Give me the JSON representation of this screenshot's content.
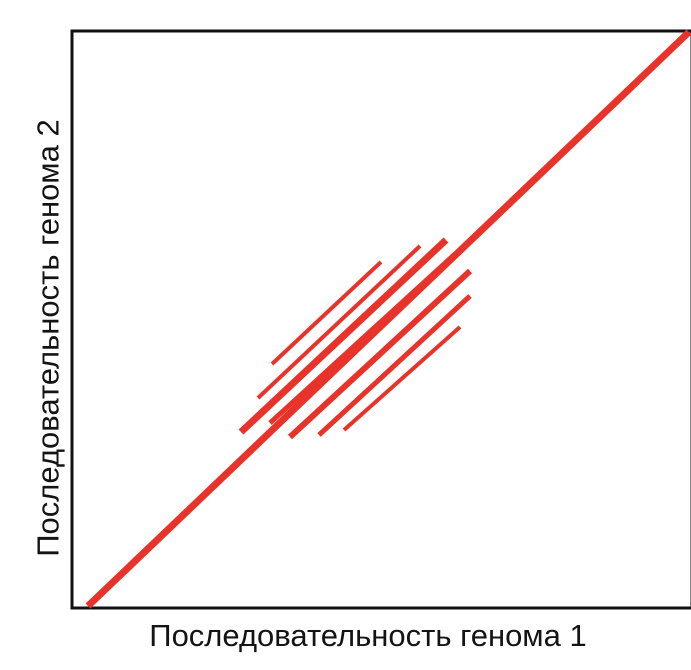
{
  "diagram": {
    "x_axis_label": "Последовательность генома 1",
    "y_axis_label": "Последовательность генома 2",
    "colors": {
      "line": "#e8332a",
      "frame": "#111111",
      "background": "#ffffff"
    }
  }
}
